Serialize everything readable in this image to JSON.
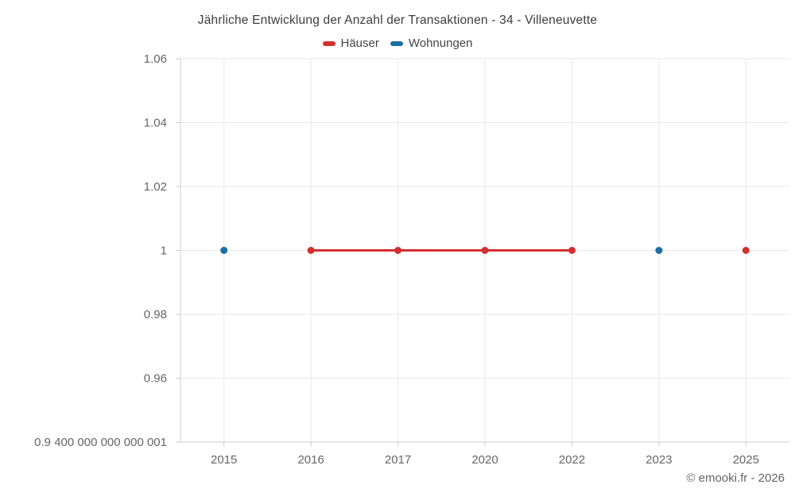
{
  "title": "Jährliche Entwicklung der Anzahl der Transaktionen - 34 - Villeneuvette",
  "legend": [
    {
      "label": "Häuser",
      "color": "#d32f2f"
    },
    {
      "label": "Wohnungen",
      "color": "#1a6fa4"
    }
  ],
  "footer": "© emooki.fr - 2026",
  "chart_data": {
    "type": "line",
    "title": "Jährliche Entwicklung der Anzahl der Transaktionen - 34 - Villeneuvette",
    "xlabel": "",
    "ylabel": "",
    "categories": [
      "2015",
      "2016",
      "2017",
      "2020",
      "2022",
      "2023",
      "2025"
    ],
    "series": [
      {
        "name": "Häuser",
        "color": "#d32f2f",
        "values": [
          null,
          1,
          1,
          1,
          1,
          null,
          1
        ]
      },
      {
        "name": "Wohnungen",
        "color": "#1a6fa4",
        "values": [
          1,
          null,
          null,
          null,
          null,
          1,
          null
        ]
      }
    ],
    "ylim": [
      0.94,
      1.06
    ],
    "ytick_values": [
      1.06,
      1.04,
      1.02,
      1,
      0.98,
      0.96,
      0.94
    ],
    "ytick_labels": [
      "1.06",
      "1.04",
      "1.02",
      "1",
      "0.98",
      "0.96",
      "0.9 400 000 000 000 001"
    ],
    "grid": true,
    "legend_position": "top-center"
  }
}
